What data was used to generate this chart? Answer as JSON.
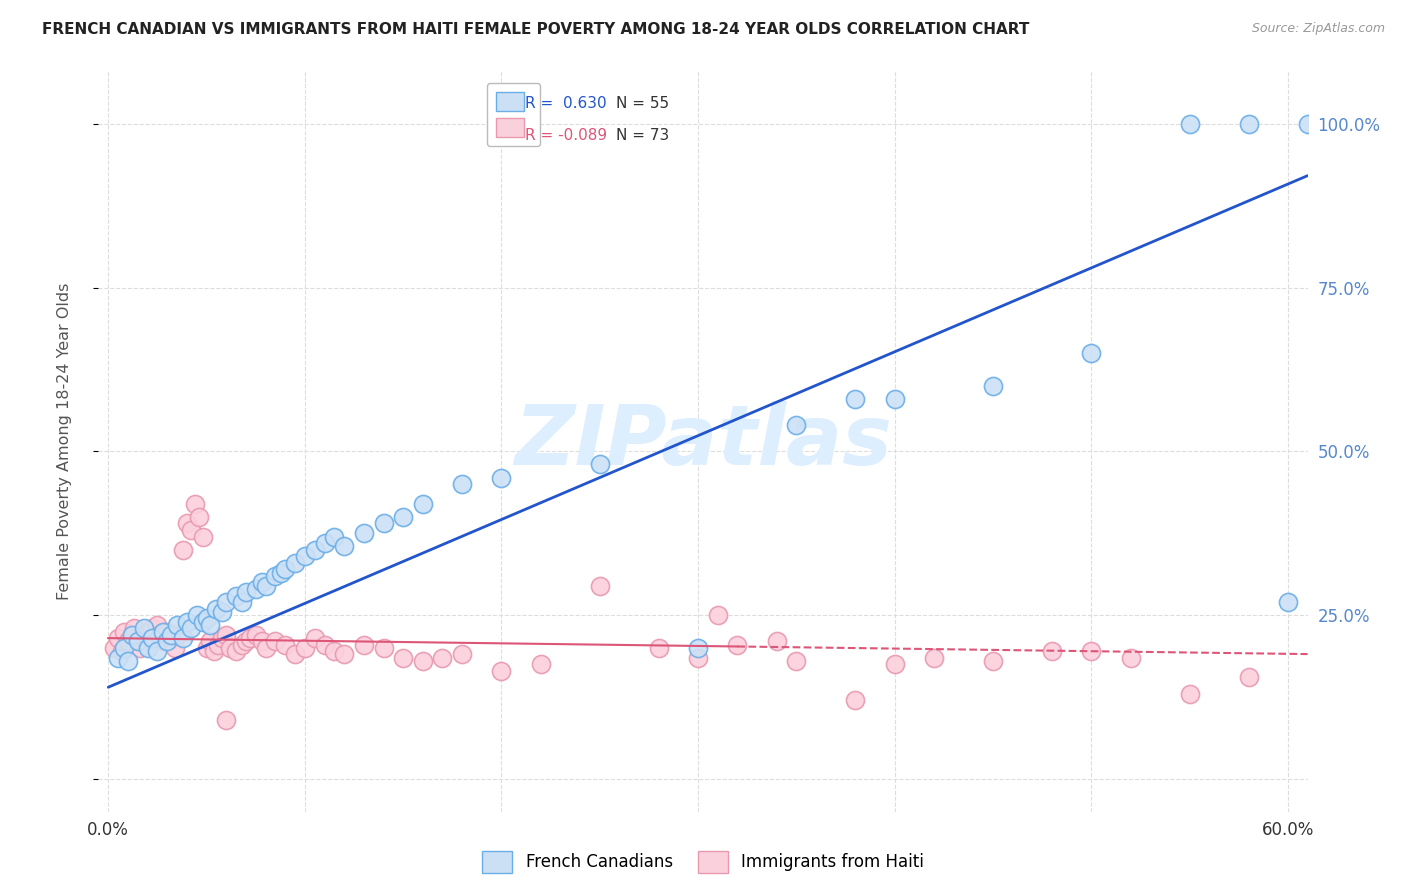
{
  "title": "FRENCH CANADIAN VS IMMIGRANTS FROM HAITI FEMALE POVERTY AMONG 18-24 YEAR OLDS CORRELATION CHART",
  "source": "Source: ZipAtlas.com",
  "xlabel_ticks": [
    0.0,
    0.1,
    0.2,
    0.3,
    0.4,
    0.5,
    0.6
  ],
  "xlabel_labels": [
    "0.0%",
    "",
    "",
    "",
    "",
    "",
    "60.0%"
  ],
  "ylabel_ticks": [
    0.0,
    0.25,
    0.5,
    0.75,
    1.0
  ],
  "ylabel_labels": [
    "",
    "25.0%",
    "50.0%",
    "75.0%",
    "100.0%"
  ],
  "xlim": [
    -0.005,
    0.61
  ],
  "ylim": [
    -0.05,
    1.08
  ],
  "r_blue": 0.63,
  "n_blue": 55,
  "r_pink": -0.089,
  "n_pink": 73,
  "legend_label_blue": "French Canadians",
  "legend_label_pink": "Immigrants from Haiti",
  "blue_color": "#cce0f5",
  "blue_edge": "#6aaee8",
  "pink_color": "#fbd0dd",
  "pink_edge": "#e899b0",
  "blue_line_color": "#2255cc",
  "pink_line_color": "#dd5577",
  "watermark_color": "#ddeeff",
  "ylabel_color": "#5588cc",
  "grid_color": "#dddddd",
  "blue_line_intercept": 0.14,
  "blue_line_slope": 1.28,
  "pink_line_intercept": 0.215,
  "pink_line_slope": -0.04,
  "blue_scatter_x": [
    0.005,
    0.008,
    0.01,
    0.012,
    0.015,
    0.018,
    0.02,
    0.022,
    0.025,
    0.028,
    0.03,
    0.032,
    0.035,
    0.038,
    0.04,
    0.042,
    0.045,
    0.048,
    0.05,
    0.052,
    0.055,
    0.058,
    0.06,
    0.065,
    0.068,
    0.07,
    0.075,
    0.078,
    0.08,
    0.085,
    0.088,
    0.09,
    0.095,
    0.1,
    0.105,
    0.11,
    0.115,
    0.12,
    0.13,
    0.14,
    0.15,
    0.16,
    0.18,
    0.2,
    0.25,
    0.3,
    0.35,
    0.38,
    0.4,
    0.45,
    0.5,
    0.55,
    0.58,
    0.6,
    0.61
  ],
  "blue_scatter_y": [
    0.185,
    0.2,
    0.18,
    0.22,
    0.21,
    0.23,
    0.2,
    0.215,
    0.195,
    0.225,
    0.21,
    0.22,
    0.235,
    0.215,
    0.24,
    0.23,
    0.25,
    0.24,
    0.245,
    0.235,
    0.26,
    0.255,
    0.27,
    0.28,
    0.27,
    0.285,
    0.29,
    0.3,
    0.295,
    0.31,
    0.315,
    0.32,
    0.33,
    0.34,
    0.35,
    0.36,
    0.37,
    0.355,
    0.375,
    0.39,
    0.4,
    0.42,
    0.45,
    0.46,
    0.48,
    0.2,
    0.54,
    0.58,
    0.58,
    0.6,
    0.65,
    1.0,
    1.0,
    0.27,
    1.0
  ],
  "pink_scatter_x": [
    0.003,
    0.005,
    0.007,
    0.008,
    0.01,
    0.012,
    0.013,
    0.015,
    0.016,
    0.018,
    0.02,
    0.022,
    0.024,
    0.025,
    0.026,
    0.028,
    0.03,
    0.032,
    0.034,
    0.035,
    0.038,
    0.04,
    0.042,
    0.044,
    0.046,
    0.048,
    0.05,
    0.052,
    0.054,
    0.056,
    0.058,
    0.06,
    0.062,
    0.065,
    0.068,
    0.07,
    0.072,
    0.075,
    0.078,
    0.08,
    0.085,
    0.09,
    0.095,
    0.1,
    0.105,
    0.11,
    0.115,
    0.12,
    0.13,
    0.14,
    0.15,
    0.16,
    0.17,
    0.18,
    0.2,
    0.22,
    0.25,
    0.28,
    0.3,
    0.32,
    0.35,
    0.38,
    0.4,
    0.42,
    0.45,
    0.48,
    0.5,
    0.52,
    0.55,
    0.58,
    0.31,
    0.34,
    0.06
  ],
  "pink_scatter_y": [
    0.2,
    0.215,
    0.195,
    0.225,
    0.21,
    0.22,
    0.23,
    0.215,
    0.2,
    0.215,
    0.225,
    0.23,
    0.215,
    0.235,
    0.22,
    0.21,
    0.225,
    0.215,
    0.2,
    0.22,
    0.35,
    0.39,
    0.38,
    0.42,
    0.4,
    0.37,
    0.2,
    0.21,
    0.195,
    0.205,
    0.215,
    0.22,
    0.2,
    0.195,
    0.205,
    0.21,
    0.215,
    0.22,
    0.21,
    0.2,
    0.21,
    0.205,
    0.19,
    0.2,
    0.215,
    0.205,
    0.195,
    0.19,
    0.205,
    0.2,
    0.185,
    0.18,
    0.185,
    0.19,
    0.165,
    0.175,
    0.295,
    0.2,
    0.185,
    0.205,
    0.18,
    0.12,
    0.175,
    0.185,
    0.18,
    0.195,
    0.195,
    0.185,
    0.13,
    0.155,
    0.25,
    0.21,
    0.09
  ]
}
